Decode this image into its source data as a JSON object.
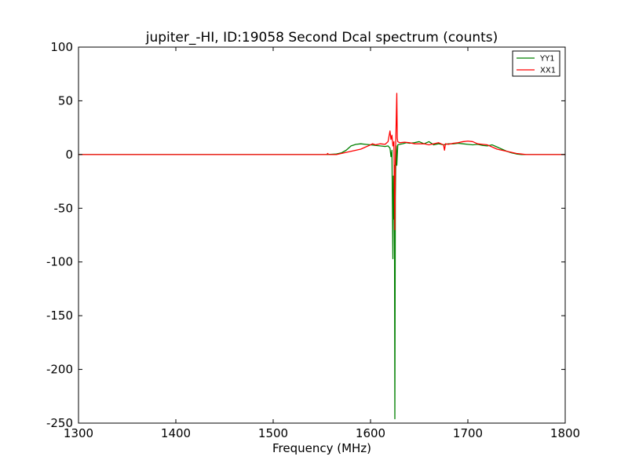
{
  "chart_data": {
    "type": "line",
    "title": "jupiter_-HI, ID:19058 Second Dcal spectrum (counts)",
    "xlabel": "Frequency (MHz)",
    "ylabel": "",
    "xlim": [
      1300,
      1800
    ],
    "ylim": [
      -250,
      100
    ],
    "xticks": [
      1300,
      1400,
      1500,
      1600,
      1700,
      1800
    ],
    "yticks": [
      -250,
      -200,
      -150,
      -100,
      -50,
      0,
      50,
      100
    ],
    "grid": false,
    "legend_position": "top-right",
    "series": [
      {
        "name": "YY1",
        "color": "#008000",
        "points": [
          [
            1300,
            0
          ],
          [
            1400,
            0
          ],
          [
            1500,
            0
          ],
          [
            1555,
            0
          ],
          [
            1565,
            0.5
          ],
          [
            1570,
            1.5
          ],
          [
            1575,
            4
          ],
          [
            1580,
            8
          ],
          [
            1585,
            9.5
          ],
          [
            1590,
            10
          ],
          [
            1595,
            9.5
          ],
          [
            1600,
            9
          ],
          [
            1605,
            8.5
          ],
          [
            1610,
            8
          ],
          [
            1615,
            7.5
          ],
          [
            1618,
            8
          ],
          [
            1620,
            6
          ],
          [
            1621,
            -2
          ],
          [
            1622,
            4
          ],
          [
            1623,
            -97
          ],
          [
            1623.5,
            -20
          ],
          [
            1624,
            -60
          ],
          [
            1624.5,
            -10
          ],
          [
            1625,
            -246
          ],
          [
            1625.5,
            -40
          ],
          [
            1626,
            -5
          ],
          [
            1626.5,
            8
          ],
          [
            1627,
            -10
          ],
          [
            1628,
            9
          ],
          [
            1630,
            9.5
          ],
          [
            1633,
            10
          ],
          [
            1637,
            11
          ],
          [
            1640,
            10.5
          ],
          [
            1645,
            11
          ],
          [
            1650,
            12
          ],
          [
            1655,
            10
          ],
          [
            1660,
            12
          ],
          [
            1665,
            9
          ],
          [
            1670,
            10
          ],
          [
            1675,
            9
          ],
          [
            1680,
            10
          ],
          [
            1685,
            10
          ],
          [
            1690,
            10.5
          ],
          [
            1695,
            10
          ],
          [
            1700,
            9.5
          ],
          [
            1705,
            9
          ],
          [
            1710,
            9.5
          ],
          [
            1715,
            8.5
          ],
          [
            1720,
            8
          ],
          [
            1725,
            9
          ],
          [
            1730,
            7
          ],
          [
            1735,
            5
          ],
          [
            1740,
            3
          ],
          [
            1745,
            1.5
          ],
          [
            1750,
            0.5
          ],
          [
            1755,
            0
          ],
          [
            1800,
            0
          ]
        ]
      },
      {
        "name": "XX1",
        "color": "#ff0000",
        "points": [
          [
            1300,
            0
          ],
          [
            1500,
            0
          ],
          [
            1555,
            0
          ],
          [
            1556,
            1
          ],
          [
            1557,
            0
          ],
          [
            1565,
            0
          ],
          [
            1570,
            1
          ],
          [
            1575,
            2
          ],
          [
            1580,
            3
          ],
          [
            1585,
            4
          ],
          [
            1590,
            5
          ],
          [
            1595,
            7
          ],
          [
            1600,
            9
          ],
          [
            1602,
            10
          ],
          [
            1605,
            9
          ],
          [
            1610,
            10
          ],
          [
            1615,
            9.5
          ],
          [
            1618,
            12
          ],
          [
            1619,
            17
          ],
          [
            1620,
            22
          ],
          [
            1621,
            14
          ],
          [
            1622,
            18
          ],
          [
            1623,
            8
          ],
          [
            1624,
            12
          ],
          [
            1625,
            -70
          ],
          [
            1625.5,
            -10
          ],
          [
            1626,
            15
          ],
          [
            1627,
            57
          ],
          [
            1627.5,
            15
          ],
          [
            1628,
            12
          ],
          [
            1630,
            11
          ],
          [
            1635,
            11.5
          ],
          [
            1640,
            11
          ],
          [
            1645,
            10
          ],
          [
            1650,
            10
          ],
          [
            1655,
            10
          ],
          [
            1660,
            9
          ],
          [
            1665,
            10
          ],
          [
            1670,
            11
          ],
          [
            1675,
            9
          ],
          [
            1676,
            4
          ],
          [
            1677,
            10
          ],
          [
            1680,
            9.5
          ],
          [
            1685,
            10.5
          ],
          [
            1690,
            11
          ],
          [
            1695,
            12
          ],
          [
            1700,
            12.5
          ],
          [
            1705,
            12
          ],
          [
            1710,
            10
          ],
          [
            1715,
            9.5
          ],
          [
            1720,
            9
          ],
          [
            1725,
            7
          ],
          [
            1730,
            5
          ],
          [
            1735,
            4
          ],
          [
            1740,
            3
          ],
          [
            1745,
            2
          ],
          [
            1750,
            1
          ],
          [
            1755,
            0.5
          ],
          [
            1760,
            0
          ],
          [
            1800,
            0
          ]
        ]
      }
    ]
  }
}
